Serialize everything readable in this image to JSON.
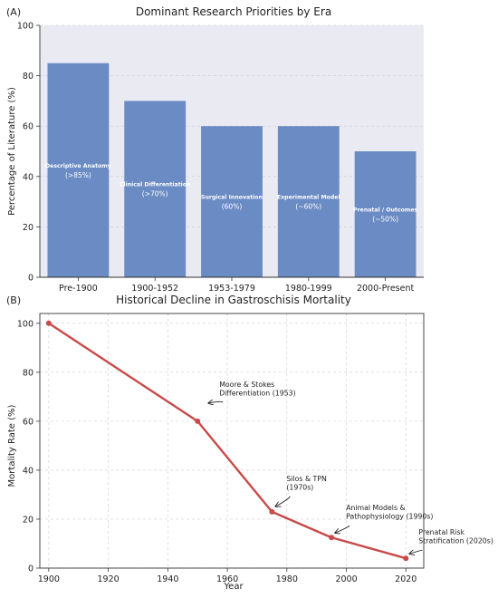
{
  "chart_data": [
    {
      "type": "bar",
      "panel": "(A)",
      "title": "Dominant Research Priorities by Era",
      "xlabel": "",
      "ylabel": "Percentage of Literature (%)",
      "ylim": [
        0,
        100
      ],
      "yticks": [
        "0",
        "20",
        "40",
        "60",
        "80",
        "100"
      ],
      "categories": [
        "Pre-1900",
        "1900-1952",
        "1953-1979",
        "1980-1999",
        "2000-Present"
      ],
      "values": [
        85,
        70,
        60,
        60,
        50
      ],
      "bar_labels": [
        {
          "line1": "Descriptive Anatomy",
          "line2": "(>85%)"
        },
        {
          "line1": "Clinical Differentiation",
          "line2": "(>70%)"
        },
        {
          "line1": "Surgical Innovation",
          "line2": "(60%)"
        },
        {
          "line1": "Experimental Model",
          "line2": "(~60%)"
        },
        {
          "line1": "Prenatal / Outcomes",
          "line2": "(~50%)"
        }
      ],
      "bar_color": "#6a8bc3",
      "grid": true
    },
    {
      "type": "line",
      "panel": "(B)",
      "title": "Historical Decline in Gastroschisis Mortality",
      "xlabel": "Year",
      "ylabel": "Mortality Rate (%)",
      "xlim": [
        1897,
        2026
      ],
      "ylim": [
        0,
        104
      ],
      "xticks": [
        "1900",
        "1920",
        "1940",
        "1960",
        "1980",
        "2000",
        "2020"
      ],
      "yticks": [
        "0",
        "20",
        "40",
        "60",
        "80",
        "100"
      ],
      "series": [
        {
          "x": [
            1900,
            1950,
            1975,
            1995,
            2020
          ],
          "y": [
            100,
            60,
            23,
            12.5,
            4
          ],
          "color": "#c94a4a"
        }
      ],
      "annotations": [
        {
          "lines": [
            "Moore & Stokes",
            "Differentiation (1953)"
          ],
          "x": 1950,
          "y": 60
        },
        {
          "lines": [
            "Silos & TPN",
            "(1970s)"
          ],
          "x": 1975,
          "y": 23
        },
        {
          "lines": [
            "Animal Models &",
            "Pathophysiology (1990s)"
          ],
          "x": 1995,
          "y": 12.5
        },
        {
          "lines": [
            "Prenatal Risk",
            "Stratification (2020s)"
          ],
          "x": 2020,
          "y": 4
        }
      ],
      "grid": true
    }
  ]
}
